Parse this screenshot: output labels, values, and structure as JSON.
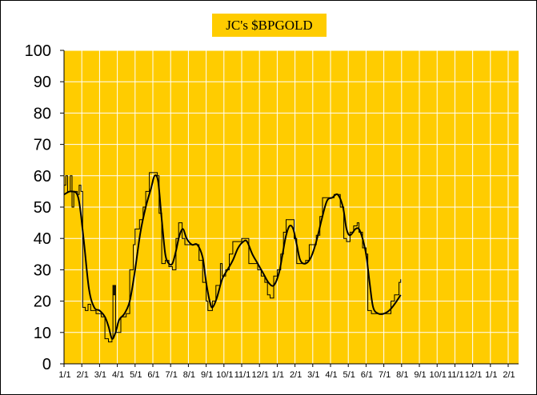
{
  "chart_data": {
    "type": "line",
    "title": "JC's $BPGOLD",
    "xlabel": "",
    "ylabel": "",
    "ylim": [
      0,
      100
    ],
    "yticks": [
      0,
      10,
      20,
      30,
      40,
      50,
      60,
      70,
      80,
      90,
      100
    ],
    "xticks": [
      "1/1",
      "2/1",
      "3/1",
      "4/1",
      "5/1",
      "6/1",
      "7/1",
      "8/1",
      "9/1",
      "10/1",
      "11/1",
      "12/1",
      "1/1",
      "2/1",
      "3/1",
      "4/1",
      "5/1",
      "6/1",
      "7/1",
      "8/1",
      "9/1",
      "10/1",
      "11/1",
      "12/1",
      "1/1",
      "2/1"
    ],
    "grid": true,
    "colors": {
      "plot_background": "#ffcc00",
      "grid": "#ffffff",
      "line": "#000000",
      "title_background": "#ffcc00"
    },
    "series": [
      {
        "style": "step (raw bullish percent)",
        "points": [
          [
            0,
            57
          ],
          [
            0.1,
            60
          ],
          [
            0.2,
            55
          ],
          [
            0.35,
            60
          ],
          [
            0.45,
            50
          ],
          [
            0.55,
            55
          ],
          [
            0.75,
            54
          ],
          [
            0.85,
            57
          ],
          [
            0.95,
            55
          ],
          [
            1.05,
            18
          ],
          [
            1.2,
            17
          ],
          [
            1.35,
            19
          ],
          [
            1.5,
            17
          ],
          [
            1.8,
            16
          ],
          [
            2.1,
            15
          ],
          [
            2.3,
            8
          ],
          [
            2.5,
            7
          ],
          [
            2.7,
            8
          ],
          [
            2.75,
            25
          ],
          [
            2.8,
            22
          ],
          [
            2.85,
            25
          ],
          [
            2.9,
            10
          ],
          [
            3.2,
            15
          ],
          [
            3.5,
            16
          ],
          [
            3.7,
            30
          ],
          [
            3.9,
            38
          ],
          [
            4.0,
            43
          ],
          [
            4.25,
            46
          ],
          [
            4.45,
            50
          ],
          [
            4.6,
            55
          ],
          [
            4.8,
            61
          ],
          [
            5.25,
            60
          ],
          [
            5.35,
            48
          ],
          [
            5.5,
            32
          ],
          [
            5.7,
            33
          ],
          [
            5.9,
            31
          ],
          [
            6.1,
            30
          ],
          [
            6.3,
            40
          ],
          [
            6.45,
            45
          ],
          [
            6.65,
            40
          ],
          [
            6.8,
            38
          ],
          [
            7.1,
            38
          ],
          [
            7.4,
            38
          ],
          [
            7.6,
            33
          ],
          [
            7.8,
            26
          ],
          [
            8.0,
            20
          ],
          [
            8.1,
            17
          ],
          [
            8.35,
            20
          ],
          [
            8.55,
            25
          ],
          [
            8.8,
            32
          ],
          [
            8.9,
            28
          ],
          [
            9.1,
            30
          ],
          [
            9.3,
            35
          ],
          [
            9.5,
            39
          ],
          [
            9.8,
            39
          ],
          [
            10.0,
            40
          ],
          [
            10.25,
            40
          ],
          [
            10.4,
            32
          ],
          [
            10.6,
            32
          ],
          [
            10.9,
            30
          ],
          [
            11.1,
            28
          ],
          [
            11.3,
            26
          ],
          [
            11.45,
            22
          ],
          [
            11.6,
            21
          ],
          [
            11.8,
            28
          ],
          [
            12.0,
            30
          ],
          [
            12.2,
            35
          ],
          [
            12.35,
            42
          ],
          [
            12.5,
            46
          ],
          [
            12.75,
            46
          ],
          [
            12.95,
            40
          ],
          [
            13.1,
            32
          ],
          [
            13.3,
            32
          ],
          [
            13.6,
            33
          ],
          [
            13.8,
            38
          ],
          [
            14.0,
            38
          ],
          [
            14.2,
            41
          ],
          [
            14.4,
            47
          ],
          [
            14.55,
            53
          ],
          [
            14.8,
            53
          ],
          [
            15.0,
            53
          ],
          [
            15.2,
            54
          ],
          [
            15.4,
            54
          ],
          [
            15.55,
            50
          ],
          [
            15.75,
            40
          ],
          [
            15.9,
            39
          ],
          [
            16.1,
            42
          ],
          [
            16.3,
            44
          ],
          [
            16.5,
            45
          ],
          [
            16.6,
            42
          ],
          [
            16.8,
            37
          ],
          [
            17.0,
            35
          ],
          [
            17.1,
            17
          ],
          [
            17.3,
            16
          ],
          [
            17.8,
            16
          ],
          [
            18.2,
            16
          ],
          [
            18.4,
            20
          ],
          [
            18.6,
            22
          ],
          [
            18.85,
            26
          ],
          [
            18.95,
            27
          ]
        ]
      },
      {
        "style": "smoothed moving average",
        "points": [
          [
            0,
            54
          ],
          [
            0.4,
            55
          ],
          [
            0.8,
            53
          ],
          [
            1.1,
            40
          ],
          [
            1.4,
            24
          ],
          [
            1.7,
            18
          ],
          [
            2.0,
            17
          ],
          [
            2.3,
            15
          ],
          [
            2.5,
            12
          ],
          [
            2.7,
            8
          ],
          [
            2.9,
            10
          ],
          [
            3.1,
            14
          ],
          [
            3.4,
            16
          ],
          [
            3.7,
            20
          ],
          [
            4.0,
            30
          ],
          [
            4.3,
            42
          ],
          [
            4.6,
            50
          ],
          [
            4.9,
            56
          ],
          [
            5.1,
            60
          ],
          [
            5.3,
            58
          ],
          [
            5.5,
            46
          ],
          [
            5.7,
            35
          ],
          [
            5.9,
            32
          ],
          [
            6.1,
            32
          ],
          [
            6.3,
            36
          ],
          [
            6.5,
            41
          ],
          [
            6.7,
            43
          ],
          [
            6.9,
            40
          ],
          [
            7.2,
            38
          ],
          [
            7.5,
            38
          ],
          [
            7.8,
            34
          ],
          [
            8.0,
            26
          ],
          [
            8.2,
            20
          ],
          [
            8.35,
            18
          ],
          [
            8.6,
            21
          ],
          [
            8.9,
            27
          ],
          [
            9.2,
            30
          ],
          [
            9.5,
            33
          ],
          [
            9.8,
            37
          ],
          [
            10.1,
            39
          ],
          [
            10.3,
            39
          ],
          [
            10.6,
            35
          ],
          [
            10.9,
            32
          ],
          [
            11.2,
            29
          ],
          [
            11.5,
            26
          ],
          [
            11.8,
            25
          ],
          [
            12.1,
            29
          ],
          [
            12.3,
            35
          ],
          [
            12.5,
            41
          ],
          [
            12.7,
            44
          ],
          [
            12.9,
            43
          ],
          [
            13.1,
            38
          ],
          [
            13.3,
            33
          ],
          [
            13.6,
            32
          ],
          [
            13.9,
            34
          ],
          [
            14.2,
            39
          ],
          [
            14.5,
            46
          ],
          [
            14.8,
            52
          ],
          [
            15.1,
            53
          ],
          [
            15.4,
            54
          ],
          [
            15.7,
            50
          ],
          [
            15.9,
            43
          ],
          [
            16.1,
            41
          ],
          [
            16.4,
            43
          ],
          [
            16.6,
            43
          ],
          [
            16.8,
            40
          ],
          [
            17.0,
            35
          ],
          [
            17.2,
            26
          ],
          [
            17.4,
            18
          ],
          [
            17.7,
            16
          ],
          [
            18.0,
            16
          ],
          [
            18.3,
            17
          ],
          [
            18.6,
            19
          ],
          [
            18.95,
            22
          ]
        ]
      }
    ]
  }
}
